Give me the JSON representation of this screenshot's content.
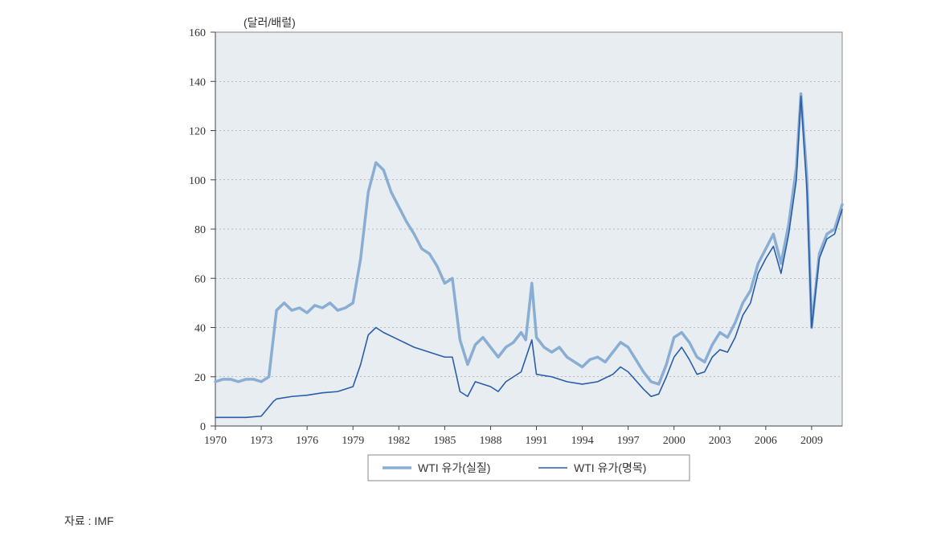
{
  "chart": {
    "type": "line",
    "unit_label": "(달러/배럴)",
    "background_color": "#e8edf2",
    "plot_border_color": "#888888",
    "grid_color": "#888888",
    "axis_text_color": "#333333",
    "x": {
      "min": 1970,
      "max": 2011,
      "tick_step": 3,
      "ticks": [
        1970,
        1973,
        1976,
        1979,
        1982,
        1985,
        1988,
        1991,
        1994,
        1997,
        2000,
        2003,
        2006,
        2009
      ]
    },
    "y": {
      "min": 0,
      "max": 160,
      "tick_step": 20,
      "ticks": [
        0,
        20,
        40,
        60,
        80,
        100,
        120,
        140,
        160
      ]
    },
    "series": [
      {
        "id": "real",
        "label": "WTI 유가(실질)",
        "color": "#8aaed3",
        "line_width": 3.5,
        "data": [
          [
            1970,
            18
          ],
          [
            1970.5,
            19
          ],
          [
            1971,
            19
          ],
          [
            1971.5,
            18
          ],
          [
            1972,
            19
          ],
          [
            1972.5,
            19
          ],
          [
            1973,
            18
          ],
          [
            1973.5,
            20
          ],
          [
            1974,
            47
          ],
          [
            1974.5,
            50
          ],
          [
            1975,
            47
          ],
          [
            1975.5,
            48
          ],
          [
            1976,
            46
          ],
          [
            1976.5,
            49
          ],
          [
            1977,
            48
          ],
          [
            1977.5,
            50
          ],
          [
            1978,
            47
          ],
          [
            1978.5,
            48
          ],
          [
            1979,
            50
          ],
          [
            1979.5,
            68
          ],
          [
            1980,
            95
          ],
          [
            1980.5,
            107
          ],
          [
            1981,
            104
          ],
          [
            1981.5,
            95
          ],
          [
            1982,
            89
          ],
          [
            1982.5,
            83
          ],
          [
            1983,
            78
          ],
          [
            1983.5,
            72
          ],
          [
            1984,
            70
          ],
          [
            1984.5,
            65
          ],
          [
            1985,
            58
          ],
          [
            1985.5,
            60
          ],
          [
            1986,
            35
          ],
          [
            1986.5,
            25
          ],
          [
            1987,
            33
          ],
          [
            1987.5,
            36
          ],
          [
            1988,
            32
          ],
          [
            1988.5,
            28
          ],
          [
            1989,
            32
          ],
          [
            1989.5,
            34
          ],
          [
            1990,
            38
          ],
          [
            1990.3,
            35
          ],
          [
            1990.7,
            58
          ],
          [
            1991,
            36
          ],
          [
            1991.5,
            32
          ],
          [
            1992,
            30
          ],
          [
            1992.5,
            32
          ],
          [
            1993,
            28
          ],
          [
            1993.5,
            26
          ],
          [
            1994,
            24
          ],
          [
            1994.5,
            27
          ],
          [
            1995,
            28
          ],
          [
            1995.5,
            26
          ],
          [
            1996,
            30
          ],
          [
            1996.5,
            34
          ],
          [
            1997,
            32
          ],
          [
            1997.5,
            27
          ],
          [
            1998,
            22
          ],
          [
            1998.5,
            18
          ],
          [
            1999,
            17
          ],
          [
            1999.5,
            25
          ],
          [
            2000,
            36
          ],
          [
            2000.5,
            38
          ],
          [
            2001,
            34
          ],
          [
            2001.5,
            28
          ],
          [
            2002,
            26
          ],
          [
            2002.5,
            33
          ],
          [
            2003,
            38
          ],
          [
            2003.5,
            36
          ],
          [
            2004,
            42
          ],
          [
            2004.5,
            50
          ],
          [
            2005,
            55
          ],
          [
            2005.5,
            66
          ],
          [
            2006,
            72
          ],
          [
            2006.5,
            78
          ],
          [
            2007,
            66
          ],
          [
            2007.5,
            82
          ],
          [
            2008,
            105
          ],
          [
            2008.3,
            135
          ],
          [
            2008.7,
            100
          ],
          [
            2009,
            40
          ],
          [
            2009.5,
            70
          ],
          [
            2010,
            78
          ],
          [
            2010.5,
            80
          ],
          [
            2011,
            90
          ]
        ]
      },
      {
        "id": "nominal",
        "label": "WTI 유가(명목)",
        "color": "#2a5da8",
        "line_width": 1.6,
        "data": [
          [
            1970,
            3.5
          ],
          [
            1971,
            3.5
          ],
          [
            1972,
            3.5
          ],
          [
            1973,
            4
          ],
          [
            1973.8,
            10
          ],
          [
            1974,
            11
          ],
          [
            1975,
            12
          ],
          [
            1976,
            12.5
          ],
          [
            1977,
            13.5
          ],
          [
            1978,
            14
          ],
          [
            1979,
            16
          ],
          [
            1979.5,
            25
          ],
          [
            1980,
            37
          ],
          [
            1980.5,
            40
          ],
          [
            1981,
            38
          ],
          [
            1982,
            35
          ],
          [
            1983,
            32
          ],
          [
            1984,
            30
          ],
          [
            1985,
            28
          ],
          [
            1985.5,
            28
          ],
          [
            1986,
            14
          ],
          [
            1986.5,
            12
          ],
          [
            1987,
            18
          ],
          [
            1988,
            16
          ],
          [
            1988.5,
            14
          ],
          [
            1989,
            18
          ],
          [
            1989.5,
            20
          ],
          [
            1990,
            22
          ],
          [
            1990.7,
            35
          ],
          [
            1991,
            21
          ],
          [
            1992,
            20
          ],
          [
            1993,
            18
          ],
          [
            1994,
            17
          ],
          [
            1995,
            18
          ],
          [
            1996,
            21
          ],
          [
            1996.5,
            24
          ],
          [
            1997,
            22
          ],
          [
            1998,
            15
          ],
          [
            1998.5,
            12
          ],
          [
            1999,
            13
          ],
          [
            1999.5,
            20
          ],
          [
            2000,
            28
          ],
          [
            2000.5,
            32
          ],
          [
            2001,
            27
          ],
          [
            2001.5,
            21
          ],
          [
            2002,
            22
          ],
          [
            2002.5,
            28
          ],
          [
            2003,
            31
          ],
          [
            2003.5,
            30
          ],
          [
            2004,
            36
          ],
          [
            2004.5,
            45
          ],
          [
            2005,
            50
          ],
          [
            2005.5,
            62
          ],
          [
            2006,
            68
          ],
          [
            2006.5,
            73
          ],
          [
            2007,
            62
          ],
          [
            2007.5,
            78
          ],
          [
            2008,
            100
          ],
          [
            2008.3,
            134
          ],
          [
            2008.7,
            95
          ],
          [
            2009,
            40
          ],
          [
            2009.5,
            68
          ],
          [
            2010,
            76
          ],
          [
            2010.5,
            78
          ],
          [
            2011,
            88
          ]
        ]
      }
    ],
    "legend": {
      "position": "bottom",
      "border_color": "#888888",
      "background": "#ffffff"
    }
  },
  "source": {
    "label": "자료 : IMF"
  }
}
